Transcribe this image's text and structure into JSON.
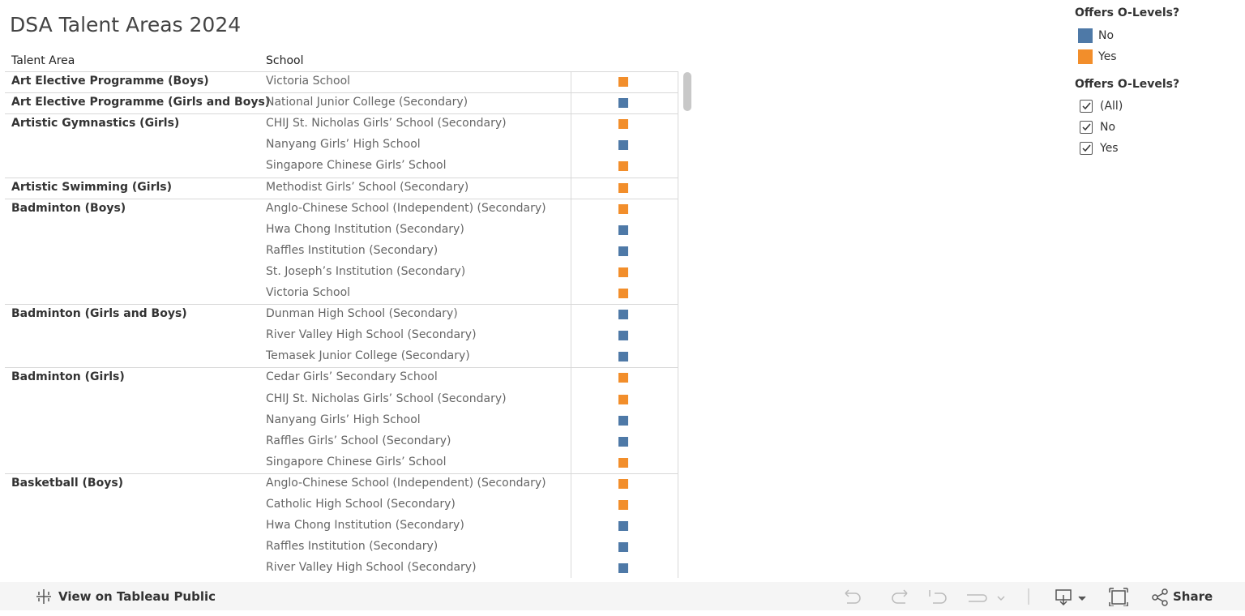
{
  "header": {
    "title": "DSA Talent Areas 2024"
  },
  "table": {
    "columns": [
      "Talent Area",
      "School"
    ],
    "groups": [
      {
        "talent_area": "Art Elective Programme (Boys)",
        "rows": [
          {
            "school": "Victoria School",
            "offers": "Yes"
          }
        ]
      },
      {
        "talent_area": "Art Elective Programme (Girls and Boys)",
        "rows": [
          {
            "school": "National Junior College (Secondary)",
            "offers": "No"
          }
        ]
      },
      {
        "talent_area": "Artistic Gymnastics (Girls)",
        "rows": [
          {
            "school": "CHIJ St. Nicholas Girls’ School (Secondary)",
            "offers": "Yes"
          },
          {
            "school": "Nanyang Girls’ High School",
            "offers": "No"
          },
          {
            "school": "Singapore Chinese Girls’ School",
            "offers": "Yes"
          }
        ]
      },
      {
        "talent_area": "Artistic Swimming (Girls)",
        "rows": [
          {
            "school": "Methodist Girls’ School (Secondary)",
            "offers": "Yes"
          }
        ]
      },
      {
        "talent_area": "Badminton (Boys)",
        "rows": [
          {
            "school": "Anglo-Chinese School (Independent) (Secondary)",
            "offers": "Yes"
          },
          {
            "school": "Hwa Chong Institution (Secondary)",
            "offers": "No"
          },
          {
            "school": "Raffles Institution (Secondary)",
            "offers": "No"
          },
          {
            "school": "St. Joseph’s Institution (Secondary)",
            "offers": "Yes"
          },
          {
            "school": "Victoria School",
            "offers": "Yes"
          }
        ]
      },
      {
        "talent_area": "Badminton (Girls and Boys)",
        "rows": [
          {
            "school": "Dunman High School (Secondary)",
            "offers": "No"
          },
          {
            "school": "River Valley High School (Secondary)",
            "offers": "No"
          },
          {
            "school": "Temasek Junior College (Secondary)",
            "offers": "No"
          }
        ]
      },
      {
        "talent_area": "Badminton (Girls)",
        "rows": [
          {
            "school": "Cedar Girls’ Secondary School",
            "offers": "Yes"
          },
          {
            "school": "CHIJ St. Nicholas Girls’ School (Secondary)",
            "offers": "Yes"
          },
          {
            "school": "Nanyang Girls’ High School",
            "offers": "No"
          },
          {
            "school": "Raffles Girls’ School (Secondary)",
            "offers": "No"
          },
          {
            "school": "Singapore Chinese Girls’ School",
            "offers": "Yes"
          }
        ]
      },
      {
        "talent_area": "Basketball (Boys)",
        "rows": [
          {
            "school": "Anglo-Chinese School (Independent) (Secondary)",
            "offers": "Yes"
          },
          {
            "school": "Catholic High School (Secondary)",
            "offers": "Yes"
          },
          {
            "school": "Hwa Chong Institution (Secondary)",
            "offers": "No"
          },
          {
            "school": "Raffles Institution (Secondary)",
            "offers": "No"
          },
          {
            "school": "River Valley High School (Secondary)",
            "offers": "No"
          }
        ]
      }
    ]
  },
  "legend": {
    "title": "Offers O-Levels?",
    "items": [
      {
        "name": "No",
        "color": "#4e79a7"
      },
      {
        "name": "Yes",
        "color": "#f28e2b"
      }
    ]
  },
  "filter": {
    "title": "Offers O-Levels?",
    "options": [
      "(All)",
      "No",
      "Yes"
    ]
  },
  "toolbar": {
    "view_link": "View on Tableau Public",
    "share": "Share"
  }
}
